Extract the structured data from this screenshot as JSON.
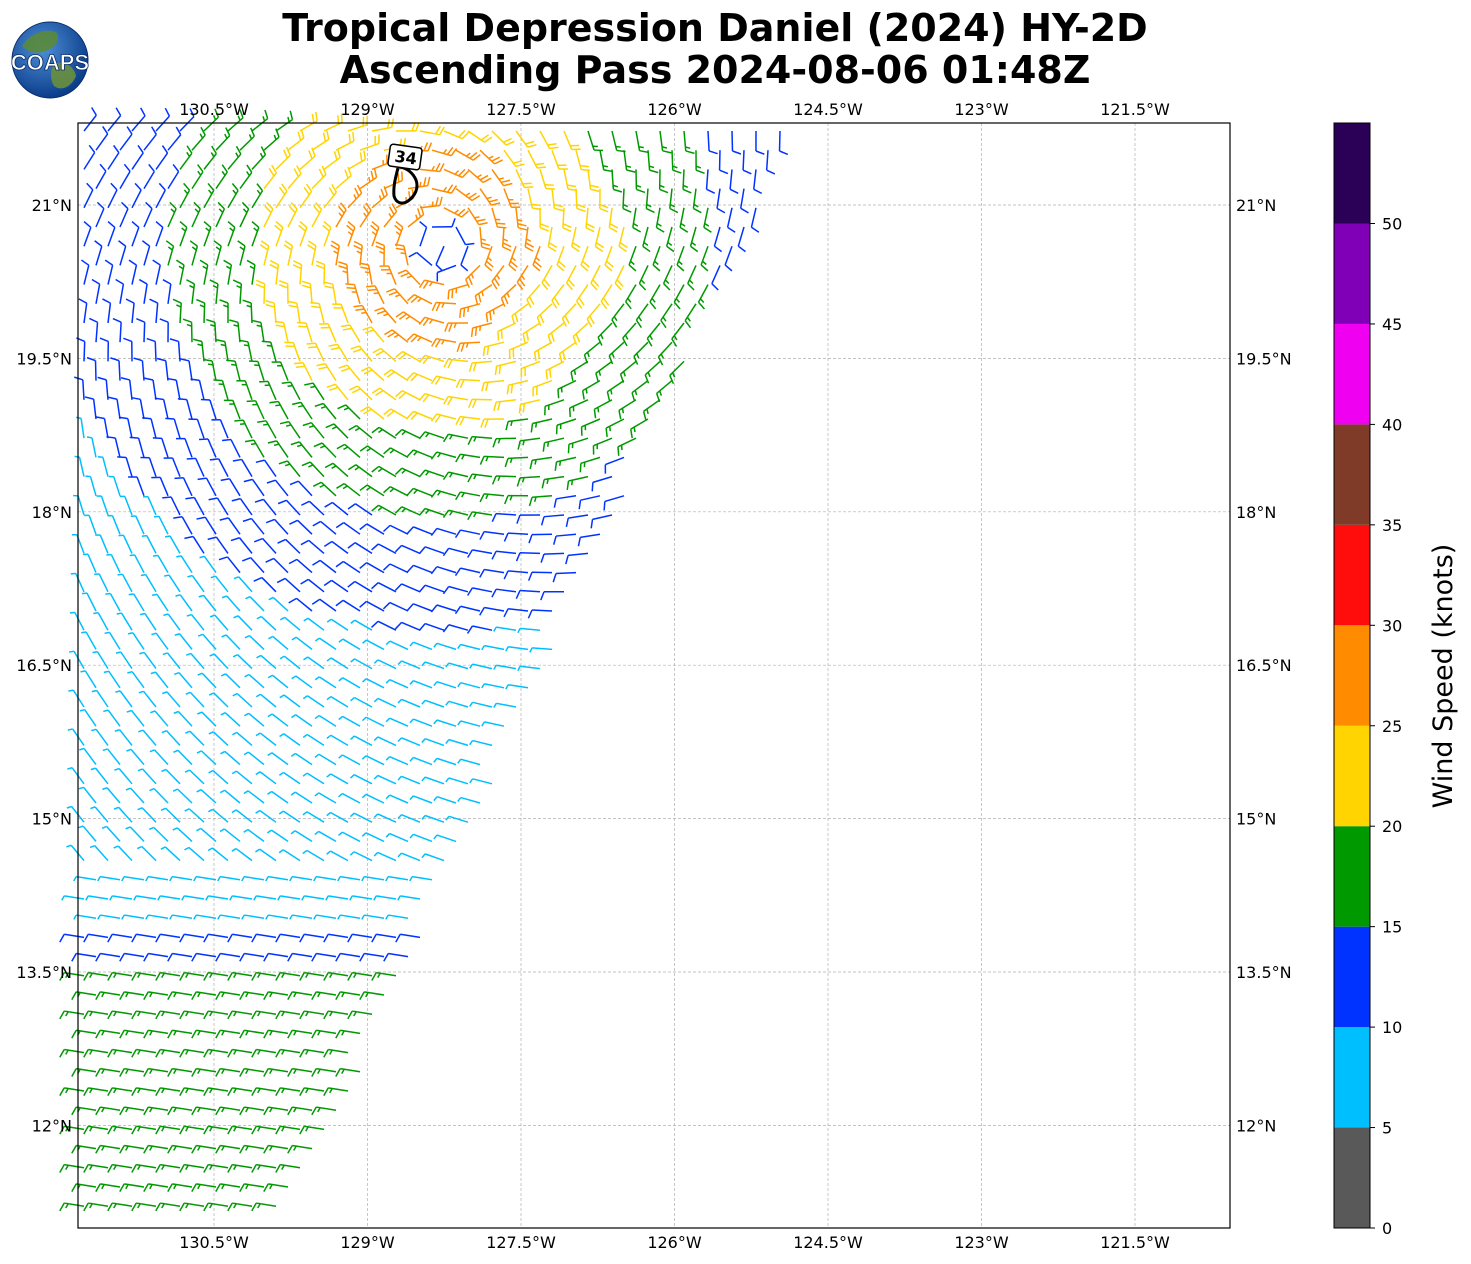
{
  "header": {
    "title_line1": "Tropical Depression Daniel (2024) HY-2D",
    "title_line2": "Ascending Pass 2024-08-06 01:48Z",
    "logo_text": "COAPS"
  },
  "map": {
    "lon_labels": [
      "130.5°W",
      "129°W",
      "127.5°W",
      "126°W",
      "124.5°W",
      "123°W",
      "121.5°W"
    ],
    "lat_labels": [
      "21°N",
      "19.5°N",
      "18°N",
      "16.5°N",
      "15°N",
      "13.5°N",
      "12°N"
    ],
    "lon_range": [
      -131.85,
      -120.6
    ],
    "lat_range": [
      10.95,
      21.8
    ],
    "grid": true,
    "contour_label": "34",
    "storm_center": {
      "lon": -128.3,
      "lat": 20.6
    }
  },
  "colorbar": {
    "label": "Wind Speed (knots)",
    "ticks": [
      "0",
      "5",
      "10",
      "15",
      "20",
      "25",
      "30",
      "35",
      "40",
      "45",
      "50"
    ],
    "bins": [
      {
        "min": 0,
        "max": 5,
        "color": "#595959"
      },
      {
        "min": 5,
        "max": 10,
        "color": "#00bfff"
      },
      {
        "min": 10,
        "max": 15,
        "color": "#0033ff"
      },
      {
        "min": 15,
        "max": 20,
        "color": "#009900"
      },
      {
        "min": 20,
        "max": 25,
        "color": "#ffd400"
      },
      {
        "min": 25,
        "max": 30,
        "color": "#ff8c00"
      },
      {
        "min": 30,
        "max": 35,
        "color": "#ff0d0d"
      },
      {
        "min": 35,
        "max": 40,
        "color": "#7f3b27"
      },
      {
        "min": 40,
        "max": 45,
        "color": "#f000f0"
      },
      {
        "min": 45,
        "max": 50,
        "color": "#8000b8"
      },
      {
        "min": 50,
        "max": 55,
        "color": "#2b0057"
      }
    ]
  }
}
